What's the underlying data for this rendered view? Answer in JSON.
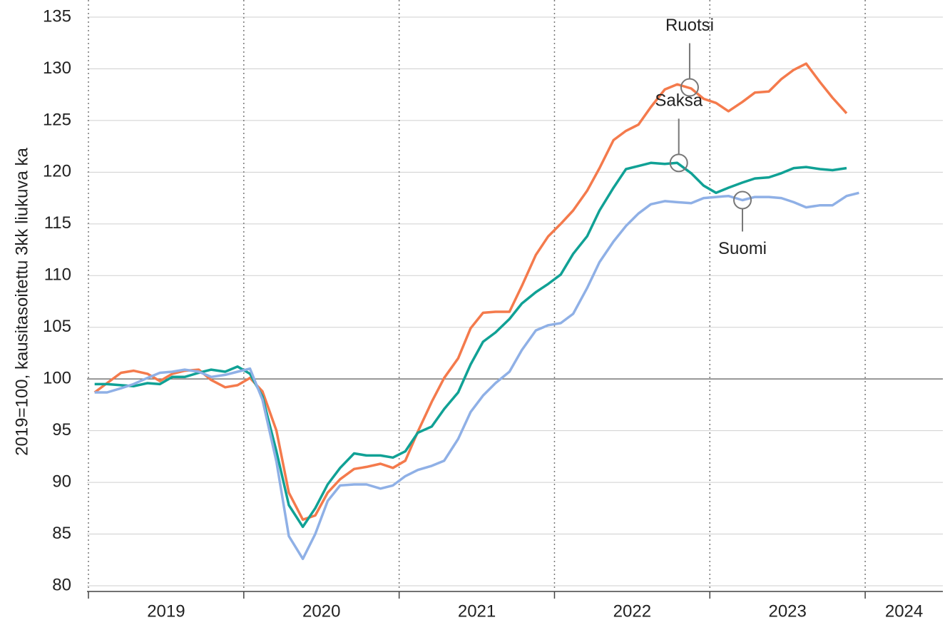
{
  "chart_data": {
    "type": "line",
    "y_label": "2019=100, kausitasoitettu 3kk liukuva ka",
    "x": [
      2019.04,
      2019.12,
      2019.21,
      2019.29,
      2019.38,
      2019.46,
      2019.54,
      2019.62,
      2019.71,
      2019.79,
      2019.88,
      2019.96,
      2020.04,
      2020.12,
      2020.21,
      2020.29,
      2020.38,
      2020.46,
      2020.54,
      2020.62,
      2020.71,
      2020.79,
      2020.88,
      2020.96,
      2021.04,
      2021.12,
      2021.21,
      2021.29,
      2021.38,
      2021.46,
      2021.54,
      2021.62,
      2021.71,
      2021.79,
      2021.88,
      2021.96,
      2022.04,
      2022.12,
      2022.21,
      2022.29,
      2022.38,
      2022.46,
      2022.54,
      2022.62,
      2022.71,
      2022.79,
      2022.88,
      2022.96,
      2023.04,
      2023.12,
      2023.21,
      2023.29,
      2023.38,
      2023.46,
      2023.54,
      2023.62,
      2023.71,
      2023.79,
      2023.88,
      2023.96
    ],
    "series": [
      {
        "name": "Ruotsi",
        "color": "#f47a4c",
        "values": [
          98.7,
          99.6,
          100.6,
          100.8,
          100.5,
          99.8,
          100.5,
          100.8,
          100.9,
          99.9,
          99.2,
          99.4,
          100.1,
          98.8,
          95,
          89,
          86.4,
          86.8,
          89,
          90.3,
          91.3,
          91.5,
          91.8,
          91.4,
          92.1,
          94.9,
          97.8,
          100.1,
          102,
          104.9,
          106.4,
          106.5,
          106.5,
          109,
          112,
          113.8,
          115,
          116.3,
          118.2,
          120.4,
          123.1,
          124,
          124.6,
          126.3,
          128,
          128.5,
          128.1,
          127.1,
          126.7,
          125.9,
          126.8,
          127.7,
          127.8,
          129,
          129.9,
          130.5,
          128.7,
          127.2,
          125.7,
          null
        ]
      },
      {
        "name": "Saksa",
        "color": "#10a195",
        "values": [
          99.5,
          99.5,
          99.4,
          99.3,
          99.6,
          99.5,
          100.2,
          100.2,
          100.6,
          100.9,
          100.7,
          101.2,
          100.5,
          98.3,
          93,
          87.8,
          85.7,
          87.5,
          89.8,
          91.4,
          92.8,
          92.6,
          92.6,
          92.4,
          93,
          94.8,
          95.4,
          97.1,
          98.7,
          101.4,
          103.6,
          104.5,
          105.8,
          107.3,
          108.4,
          109.2,
          110.1,
          112.1,
          113.8,
          116.3,
          118.5,
          120.3,
          120.6,
          120.9,
          120.8,
          120.9,
          119.9,
          118.7,
          118,
          118.5,
          119,
          119.4,
          119.5,
          119.9,
          120.4,
          120.5,
          120.3,
          120.2,
          120.4,
          null
        ]
      },
      {
        "name": "Suomi",
        "color": "#8fb0e6",
        "values": [
          98.7,
          98.7,
          99.1,
          99.5,
          100.1,
          100.6,
          100.7,
          100.9,
          100.7,
          100.2,
          100.4,
          100.7,
          101,
          98,
          92,
          84.8,
          82.6,
          85,
          88.2,
          89.7,
          89.8,
          89.8,
          89.4,
          89.7,
          90.6,
          91.2,
          91.6,
          92.1,
          94.2,
          96.8,
          98.4,
          99.6,
          100.7,
          102.8,
          104.7,
          105.2,
          105.4,
          106.3,
          108.8,
          111.3,
          113.3,
          114.8,
          116,
          116.9,
          117.2,
          117.1,
          117,
          117.5,
          117.6,
          117.7,
          117.3,
          117.6,
          117.6,
          117.5,
          117.1,
          116.6,
          116.8,
          116.8,
          117.7,
          118
        ]
      }
    ],
    "annotations": [
      {
        "text": "Ruotsi",
        "x": 2022.87,
        "y": 128.2,
        "position": "above"
      },
      {
        "text": "Saksa",
        "x": 2022.8,
        "y": 120.9,
        "position": "above"
      },
      {
        "text": "Suomi",
        "x": 2023.21,
        "y": 117.3,
        "position": "below"
      }
    ],
    "xlim": [
      2019,
      2024.5
    ],
    "xticks": [
      2019,
      2020,
      2021,
      2022,
      2023,
      2024
    ],
    "ylim": [
      80,
      135
    ],
    "yticks": [
      80,
      85,
      90,
      95,
      100,
      105,
      110,
      115,
      120,
      125,
      130,
      135
    ],
    "reference_line": 100,
    "grid": true
  }
}
